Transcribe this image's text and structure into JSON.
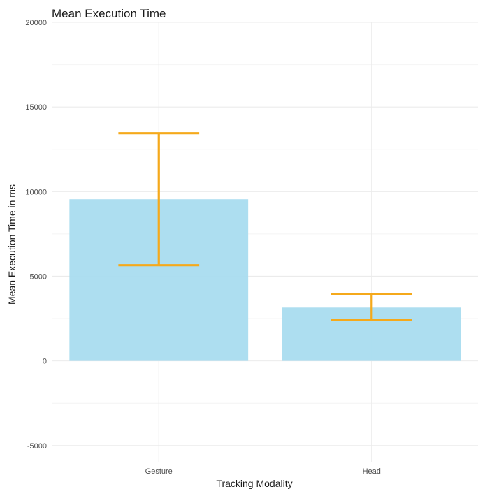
{
  "chart_data": {
    "type": "bar",
    "title": "Mean Execution Time",
    "xlabel": "Tracking Modality",
    "ylabel": "Mean Execution Time in ms",
    "categories": [
      "Gesture",
      "Head"
    ],
    "values": [
      9550,
      3150
    ],
    "error_bars": [
      {
        "lower": 5650,
        "upper": 13450
      },
      {
        "lower": 2400,
        "upper": 3950
      }
    ],
    "ylim": [
      -6000,
      20000
    ],
    "yticks": [
      -5000,
      0,
      5000,
      10000,
      15000,
      20000
    ],
    "ytick_labels": [
      "-5000",
      "0",
      "5000",
      "10000",
      "15000",
      "20000"
    ],
    "grid": true,
    "legend": "none",
    "colors": {
      "bar": "#a9dcef",
      "error_bar": "#f5a91b",
      "grid_major": "#ebebeb",
      "grid_minor": "#f4f4f4"
    }
  }
}
